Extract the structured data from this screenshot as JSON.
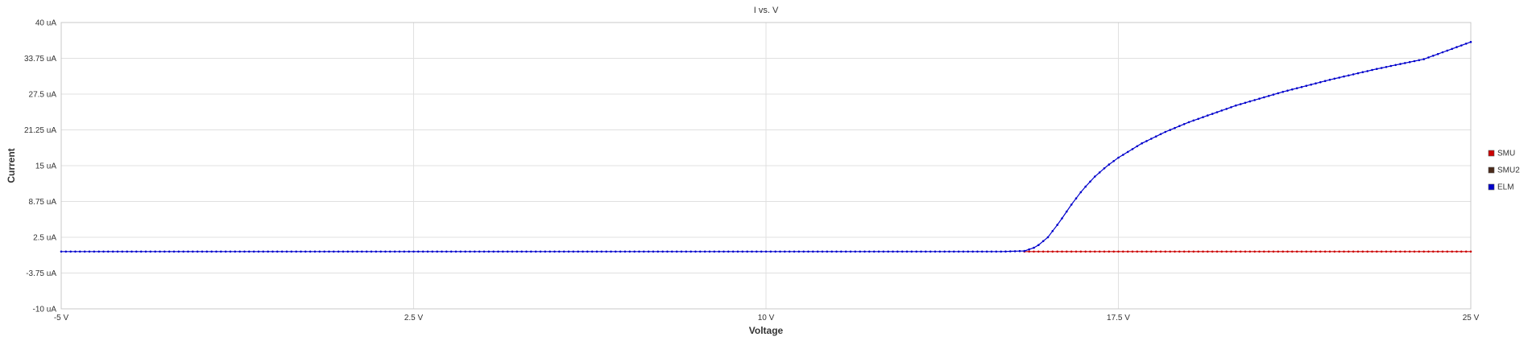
{
  "chart_data": {
    "type": "line",
    "title": "I vs. V",
    "xlabel": "Voltage",
    "ylabel": "Current",
    "xlim": [
      -5,
      25
    ],
    "ylim": [
      -10,
      40
    ],
    "x_ticks": [
      {
        "value": -5,
        "label": "-5 V"
      },
      {
        "value": 2.5,
        "label": "2.5 V"
      },
      {
        "value": 10,
        "label": "10 V"
      },
      {
        "value": 17.5,
        "label": "17.5 V"
      },
      {
        "value": 25,
        "label": "25 V"
      }
    ],
    "y_ticks": [
      {
        "value": 40,
        "label": "40 uA"
      },
      {
        "value": 33.75,
        "label": "33.75 uA"
      },
      {
        "value": 27.5,
        "label": "27.5 uA"
      },
      {
        "value": 21.25,
        "label": "21.25 uA"
      },
      {
        "value": 15,
        "label": "15 uA"
      },
      {
        "value": 8.75,
        "label": "8.75 uA"
      },
      {
        "value": 2.5,
        "label": "2.5 uA"
      },
      {
        "value": -3.75,
        "label": "-3.75 uA"
      },
      {
        "value": -10,
        "label": "-10 uA"
      }
    ],
    "grid": true,
    "legend_position": "right",
    "series": [
      {
        "name": "SMU",
        "color": "#cc0000",
        "x": [
          15.5,
          16,
          17,
          18,
          19,
          20,
          21,
          22,
          23,
          24,
          25
        ],
        "y": [
          0,
          0,
          0,
          0,
          0,
          0,
          0,
          0,
          0,
          0,
          0
        ]
      },
      {
        "name": "SMU2",
        "color": "#4a2a1a",
        "x": [],
        "y": []
      },
      {
        "name": "ELM",
        "color": "#0000cc",
        "x": [
          -5,
          0,
          5,
          10,
          15,
          15.5,
          15.75,
          16,
          16.25,
          16.5,
          16.75,
          17,
          17.25,
          17.5,
          18,
          18.5,
          19,
          20,
          21,
          22,
          23,
          24,
          25
        ],
        "y": [
          0,
          0,
          0,
          0,
          0,
          0.1,
          0.8,
          2.5,
          5.2,
          8.2,
          10.9,
          13.1,
          14.9,
          16.4,
          18.9,
          20.9,
          22.6,
          25.5,
          27.9,
          30.0,
          31.9,
          33.6,
          36.6
        ]
      }
    ]
  }
}
